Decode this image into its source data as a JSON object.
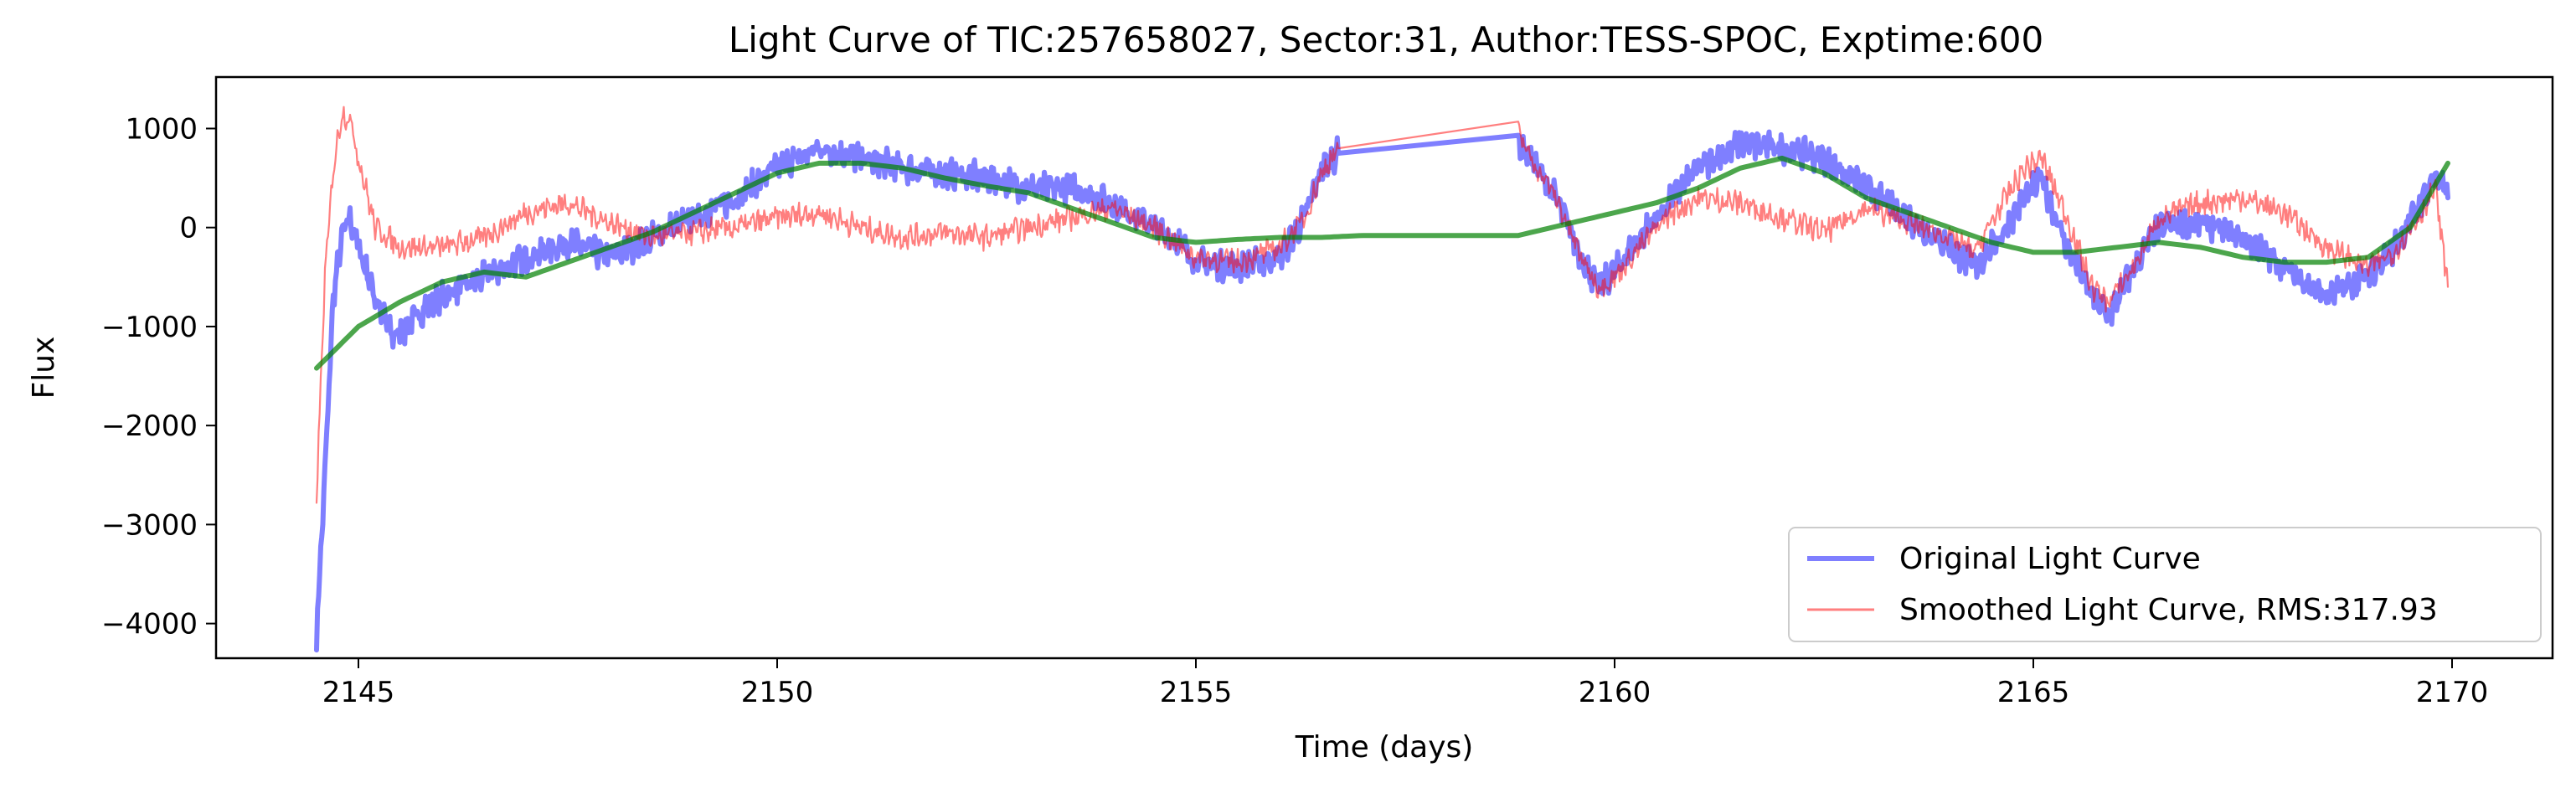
{
  "chart_data": {
    "type": "line",
    "title": "Light Curve of TIC:257658027, Sector:31, Author:TESS-SPOC, Exptime:600",
    "xlabel": "Time (days)",
    "ylabel": "Flux",
    "xlim": [
      2143.3,
      2171.2
    ],
    "ylim": [
      -4350,
      1520
    ],
    "xticks": [
      2145,
      2150,
      2155,
      2160,
      2165,
      2170
    ],
    "yticks": [
      -4000,
      -3000,
      -2000,
      -1000,
      0,
      1000
    ],
    "xtick_labels": [
      "2145",
      "2150",
      "2155",
      "2160",
      "2165",
      "2170"
    ],
    "ytick_labels": [
      "−4000",
      "−3000",
      "−2000",
      "−1000",
      "0",
      "1000"
    ],
    "grid": false,
    "legend_position": "lower-right",
    "series": [
      {
        "name": "Original Light Curve",
        "color": "#0000ff",
        "opacity": 0.5,
        "style": "thick",
        "x": [
          2144.5,
          2144.6,
          2144.7,
          2144.8,
          2144.9,
          2145.0,
          2145.2,
          2145.4,
          2145.6,
          2145.8,
          2146.0,
          2146.5,
          2147.0,
          2147.5,
          2148.0,
          2148.5,
          2149.0,
          2149.5,
          2150.0,
          2150.5,
          2151.0,
          2151.5,
          2152.0,
          2152.5,
          2153.0,
          2153.5,
          2154.0,
          2154.5,
          2154.8,
          2155.0,
          2155.5,
          2156.0,
          2156.3,
          2156.5,
          2156.7,
          2158.85,
          2159.0,
          2159.3,
          2159.6,
          2159.8,
          2160.0,
          2160.3,
          2160.6,
          2161.0,
          2161.5,
          2162.0,
          2162.5,
          2163.0,
          2163.5,
          2164.0,
          2164.3,
          2164.6,
          2164.9,
          2165.1,
          2165.4,
          2165.7,
          2165.9,
          2166.2,
          2166.5,
          2167.0,
          2167.5,
          2168.0,
          2168.5,
          2169.0,
          2169.3,
          2169.6,
          2169.8,
          2169.95
        ],
        "y": [
          -4100,
          -2500,
          -700,
          -100,
          100,
          -200,
          -700,
          -1100,
          -1000,
          -800,
          -700,
          -500,
          -300,
          -150,
          -300,
          -100,
          100,
          300,
          600,
          800,
          700,
          600,
          550,
          500,
          400,
          400,
          250,
          0,
          -150,
          -350,
          -400,
          -300,
          100,
          600,
          750,
          850,
          700,
          300,
          -300,
          -600,
          -450,
          -100,
          200,
          600,
          850,
          800,
          700,
          400,
          100,
          -200,
          -400,
          -100,
          300,
          500,
          -200,
          -700,
          -900,
          -400,
          0,
          50,
          -100,
          -400,
          -700,
          -500,
          -200,
          200,
          550,
          300
        ]
      },
      {
        "name": "Smoothed Light Curve, RMS:317.93",
        "color": "#ff0000",
        "opacity": 0.5,
        "style": "thin",
        "x": [
          2144.5,
          2144.6,
          2144.7,
          2144.8,
          2144.9,
          2145.0,
          2145.2,
          2145.5,
          2146.0,
          2146.5,
          2147.0,
          2147.5,
          2148.0,
          2148.5,
          2149.0,
          2149.5,
          2150.0,
          2150.5,
          2151.0,
          2151.5,
          2152.0,
          2152.5,
          2153.0,
          2153.5,
          2154.0,
          2154.5,
          2155.0,
          2155.5,
          2156.0,
          2156.3,
          2156.5,
          2156.7,
          2158.85,
          2159.0,
          2159.3,
          2159.6,
          2159.8,
          2160.0,
          2160.3,
          2160.6,
          2161.0,
          2161.5,
          2162.0,
          2162.5,
          2163.0,
          2163.5,
          2164.0,
          2164.3,
          2164.6,
          2164.9,
          2165.1,
          2165.4,
          2165.7,
          2165.9,
          2166.2,
          2166.5,
          2167.0,
          2167.5,
          2168.0,
          2168.5,
          2169.0,
          2169.3,
          2169.6,
          2169.8,
          2169.95
        ],
        "y": [
          -2700,
          -500,
          600,
          1150,
          1100,
          700,
          0,
          -200,
          -200,
          -100,
          150,
          250,
          50,
          -100,
          -50,
          0,
          100,
          150,
          0,
          -100,
          -50,
          -100,
          0,
          100,
          200,
          0,
          -300,
          -350,
          -200,
          100,
          550,
          800,
          950,
          700,
          300,
          -300,
          -600,
          -500,
          -200,
          100,
          300,
          250,
          100,
          -50,
          200,
          50,
          -100,
          -250,
          200,
          600,
          700,
          100,
          -600,
          -750,
          -400,
          100,
          250,
          300,
          150,
          -200,
          -400,
          -250,
          100,
          400,
          -600
        ]
      },
      {
        "name": "",
        "color": "#008000",
        "opacity": 0.7,
        "style": "smooth",
        "x": [
          2144.5,
          2145.0,
          2145.5,
          2146.0,
          2146.5,
          2147.0,
          2147.5,
          2148.0,
          2148.5,
          2149.0,
          2149.5,
          2150.0,
          2150.5,
          2151.0,
          2151.5,
          2152.0,
          2152.5,
          2153.0,
          2153.5,
          2154.0,
          2154.5,
          2155.0,
          2155.5,
          2156.0,
          2156.5,
          2157.0,
          2158.0,
          2158.85,
          2159.5,
          2160.0,
          2160.5,
          2161.0,
          2161.5,
          2162.0,
          2162.5,
          2163.0,
          2163.5,
          2164.0,
          2164.5,
          2165.0,
          2165.5,
          2166.0,
          2166.5,
          2167.0,
          2167.5,
          2168.0,
          2168.5,
          2169.0,
          2169.5,
          2169.95
        ],
        "y": [
          -1420,
          -1000,
          -750,
          -550,
          -450,
          -500,
          -350,
          -200,
          -50,
          150,
          350,
          550,
          650,
          650,
          600,
          500,
          420,
          350,
          200,
          50,
          -100,
          -150,
          -120,
          -100,
          -100,
          -80,
          -80,
          -80,
          50,
          150,
          250,
          400,
          600,
          700,
          550,
          300,
          150,
          0,
          -150,
          -250,
          -250,
          -200,
          -150,
          -200,
          -300,
          -350,
          -350,
          -300,
          0,
          650
        ]
      }
    ]
  }
}
